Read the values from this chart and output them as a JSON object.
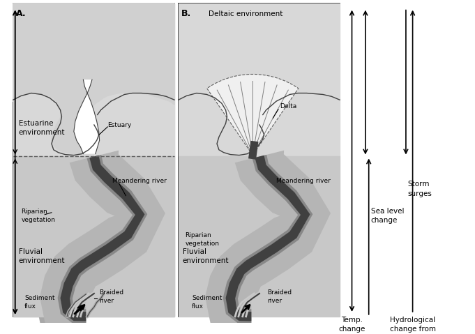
{
  "background_color": "#ffffff",
  "panel_bg": "#e8e8e8",
  "light_gray": "#c8c8c8",
  "mid_gray": "#a0a0a0",
  "dark_gray": "#606060",
  "river_color": "#404040",
  "riparian_color": "#b0b0b0",
  "floodplain_color": "#909090",
  "estuary_fill": "#d8d8d8",
  "delta_fill": "#f0f0f0",
  "text_color": "#000000",
  "panel_a_label": "A.",
  "panel_b_label": "B.",
  "label_estuarine": "Estuarine\nenvironment",
  "label_fluvial_a": "Fluvial\nenvironment",
  "label_fluvial_b": "Fluvial\nenvironment",
  "label_deltaic": "Deltaic environment",
  "label_estuary": "Estuary",
  "label_delta": "Delta",
  "label_meandering_a": "Meandering river",
  "label_meandering_b": "Meandering river",
  "label_riparian_a": "Riparian\nvegetation",
  "label_riparian_b": "Riparian\nvegetation",
  "label_sediment_a": "Sediment\nflux",
  "label_sediment_b": "Sediment\nflux",
  "label_braided_a": "Braided\nriver",
  "label_braided_b": "Braided\nriver",
  "label_sea_level": "Sea level\nchange",
  "label_storm": "Storm\nsurges",
  "label_temp": "Temp.\nchange",
  "label_hydro": "Hydrological\nchange from"
}
